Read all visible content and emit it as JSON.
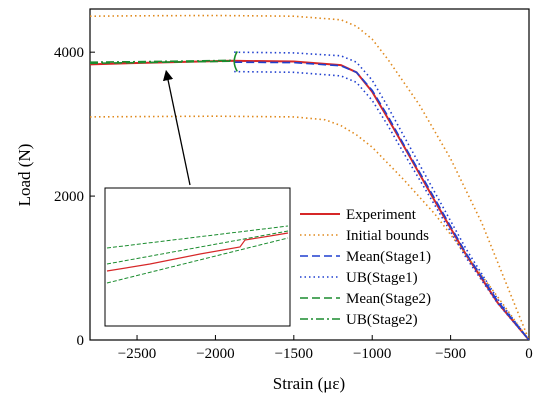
{
  "chart_data": {
    "type": "line",
    "xlabel": "Strain (με)",
    "ylabel": "Load (N)",
    "xlim": [
      -2800,
      0
    ],
    "ylim": [
      0,
      4600
    ],
    "x_ticks": [
      "-2500",
      "-2000",
      "-1500",
      "-1000",
      "-500",
      "0"
    ],
    "y_ticks": [
      "0",
      "2000",
      "4000"
    ],
    "legend_position": "lower-right",
    "inset": "zoomed view of upper-left region (x ≈ -2800 to -1900), arrow points to plateau near (-2300, 3880)",
    "series": [
      {
        "name": "Experiment",
        "color": "#d62728",
        "style": "solid",
        "x": [
          -2800,
          -2500,
          -2200,
          -1900,
          -1500,
          -1200,
          -1100,
          -1000,
          -900,
          -800,
          -600,
          -400,
          -200,
          0
        ],
        "y": [
          3830,
          3850,
          3865,
          3880,
          3870,
          3820,
          3720,
          3450,
          3080,
          2700,
          1930,
          1180,
          520,
          0
        ]
      },
      {
        "name": "Initial bounds",
        "color": "#e08a1e",
        "style": "dotted",
        "x": [
          -2800,
          -2500,
          -2000,
          -1500,
          -1200,
          -1100,
          -1000,
          -900,
          -700,
          -500,
          -300,
          0
        ],
        "y": [
          4500,
          4505,
          4510,
          4500,
          4450,
          4360,
          4180,
          3900,
          3270,
          2520,
          1620,
          0
        ]
      },
      {
        "name": "",
        "color": "#e08a1e",
        "style": "dotted",
        "x": [
          -2800,
          -2500,
          -2000,
          -1500,
          -1300,
          -1200,
          -1100,
          -1000,
          -800,
          -600,
          -400,
          -200,
          0
        ],
        "y": [
          3100,
          3105,
          3110,
          3100,
          3060,
          2980,
          2850,
          2680,
          2230,
          1750,
          1180,
          600,
          0
        ]
      },
      {
        "name": "Mean(Stage1)",
        "color": "#1f3fcf",
        "style": "dashed",
        "x": [
          -1880,
          -1500,
          -1200,
          -1100,
          -1000,
          -900,
          -800,
          -600,
          -400,
          -200,
          0
        ],
        "y": [
          3860,
          3855,
          3810,
          3720,
          3470,
          3110,
          2720,
          1960,
          1200,
          540,
          0
        ]
      },
      {
        "name": "UB(Stage1)",
        "color": "#1f3fcf",
        "style": "dotted",
        "x": [
          -1880,
          -1500,
          -1200,
          -1100,
          -1000,
          -900,
          -800,
          -600,
          -400,
          -200,
          0
        ],
        "y": [
          4000,
          3990,
          3950,
          3860,
          3610,
          3240,
          2840,
          2050,
          1260,
          570,
          0
        ]
      },
      {
        "name": "",
        "color": "#1f3fcf",
        "style": "dotted",
        "x": [
          -1880,
          -1500,
          -1200,
          -1100,
          -1000,
          -900,
          -800,
          -600,
          -400,
          -200,
          0
        ],
        "y": [
          3730,
          3720,
          3670,
          3580,
          3330,
          2980,
          2600,
          1870,
          1140,
          510,
          0
        ]
      },
      {
        "name": "Mean(Stage2)",
        "color": "#1a8c2e",
        "style": "dashed",
        "x": [
          -2800,
          -2500,
          -2200,
          -1900
        ],
        "y": [
          3845,
          3855,
          3865,
          3875
        ]
      },
      {
        "name": "UB(Stage2)",
        "color": "#1a8c2e",
        "style": "dashdot",
        "x": [
          -2800,
          -2500,
          -2200,
          -1900
        ],
        "y": [
          3860,
          3868,
          3876,
          3885
        ]
      }
    ]
  }
}
